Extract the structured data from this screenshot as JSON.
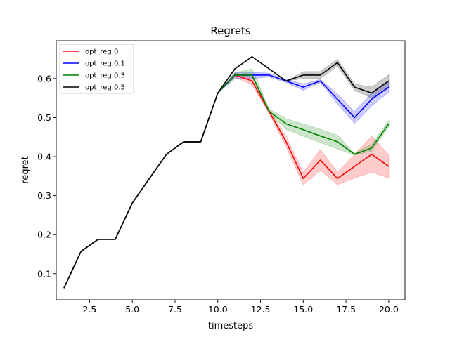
{
  "chart_data": {
    "type": "line",
    "title": "Regrets",
    "xlabel": "timesteps",
    "ylabel": "regret",
    "xlim": [
      0.55,
      20.95
    ],
    "ylim": [
      0.033,
      0.697
    ],
    "xticks": [
      2.5,
      5.0,
      7.5,
      10.0,
      12.5,
      15.0,
      17.5,
      20.0
    ],
    "xtick_labels": [
      "2.5",
      "5.0",
      "7.5",
      "10.0",
      "12.5",
      "15.0",
      "17.5",
      "20.0"
    ],
    "yticks": [
      0.1,
      0.2,
      0.3,
      0.4,
      0.5,
      0.6
    ],
    "ytick_labels": [
      "0.1",
      "0.2",
      "0.3",
      "0.4",
      "0.5",
      "0.6"
    ],
    "grid": false,
    "legend_position": "upper left",
    "x": [
      1,
      2,
      3,
      4,
      5,
      6,
      7,
      8,
      9,
      10,
      11,
      12,
      13,
      14,
      15,
      16,
      17,
      18,
      19,
      20
    ],
    "series": [
      {
        "name": "opt_reg 0",
        "color": "#ff0000",
        "values": [
          0.063,
          0.157,
          0.188,
          0.188,
          0.281,
          0.344,
          0.406,
          0.438,
          0.438,
          0.563,
          0.609,
          0.594,
          0.516,
          0.438,
          0.344,
          0.391,
          0.344,
          0.375,
          0.406,
          0.375
        ],
        "lower": [
          0.063,
          0.157,
          0.188,
          0.188,
          0.281,
          0.344,
          0.406,
          0.438,
          0.438,
          0.563,
          0.604,
          0.584,
          0.51,
          0.425,
          0.328,
          0.365,
          0.328,
          0.345,
          0.36,
          0.345
        ],
        "upper": [
          0.063,
          0.157,
          0.188,
          0.188,
          0.281,
          0.344,
          0.406,
          0.438,
          0.438,
          0.563,
          0.614,
          0.604,
          0.522,
          0.45,
          0.36,
          0.418,
          0.36,
          0.405,
          0.452,
          0.405
        ]
      },
      {
        "name": "opt_reg 0.1",
        "color": "#0000ff",
        "values": [
          0.063,
          0.157,
          0.188,
          0.188,
          0.281,
          0.344,
          0.406,
          0.438,
          0.438,
          0.563,
          0.609,
          0.609,
          0.609,
          0.594,
          0.578,
          0.594,
          0.547,
          0.5,
          0.547,
          0.578
        ],
        "lower": [
          0.063,
          0.157,
          0.188,
          0.188,
          0.281,
          0.344,
          0.406,
          0.438,
          0.438,
          0.563,
          0.6,
          0.6,
          0.604,
          0.59,
          0.57,
          0.59,
          0.535,
          0.485,
          0.53,
          0.565
        ],
        "upper": [
          0.063,
          0.157,
          0.188,
          0.188,
          0.281,
          0.344,
          0.406,
          0.438,
          0.438,
          0.563,
          0.616,
          0.616,
          0.614,
          0.598,
          0.586,
          0.598,
          0.56,
          0.515,
          0.564,
          0.591
        ]
      },
      {
        "name": "opt_reg 0.3",
        "color": "#008000",
        "values": [
          0.063,
          0.157,
          0.188,
          0.188,
          0.281,
          0.344,
          0.406,
          0.438,
          0.438,
          0.563,
          0.609,
          0.609,
          0.516,
          0.484,
          0.469,
          0.453,
          0.438,
          0.406,
          0.422,
          0.484
        ],
        "lower": [
          0.063,
          0.157,
          0.188,
          0.188,
          0.281,
          0.344,
          0.406,
          0.438,
          0.438,
          0.563,
          0.604,
          0.604,
          0.512,
          0.47,
          0.452,
          0.436,
          0.42,
          0.404,
          0.414,
          0.476
        ],
        "upper": [
          0.063,
          0.157,
          0.188,
          0.188,
          0.281,
          0.344,
          0.406,
          0.438,
          0.438,
          0.563,
          0.614,
          0.625,
          0.522,
          0.497,
          0.484,
          0.47,
          0.455,
          0.408,
          0.432,
          0.492
        ]
      },
      {
        "name": "opt_reg 0.5",
        "color": "#000000",
        "values": [
          0.063,
          0.157,
          0.188,
          0.188,
          0.281,
          0.344,
          0.406,
          0.438,
          0.438,
          0.563,
          0.625,
          0.656,
          0.625,
          0.594,
          0.609,
          0.609,
          0.641,
          0.578,
          0.563,
          0.594
        ],
        "lower": [
          0.063,
          0.157,
          0.188,
          0.188,
          0.281,
          0.344,
          0.406,
          0.438,
          0.438,
          0.563,
          0.625,
          0.656,
          0.625,
          0.594,
          0.6,
          0.6,
          0.632,
          0.57,
          0.55,
          0.578
        ],
        "upper": [
          0.063,
          0.157,
          0.188,
          0.188,
          0.281,
          0.344,
          0.406,
          0.438,
          0.438,
          0.563,
          0.625,
          0.656,
          0.625,
          0.594,
          0.618,
          0.618,
          0.65,
          0.586,
          0.578,
          0.61
        ]
      }
    ]
  }
}
